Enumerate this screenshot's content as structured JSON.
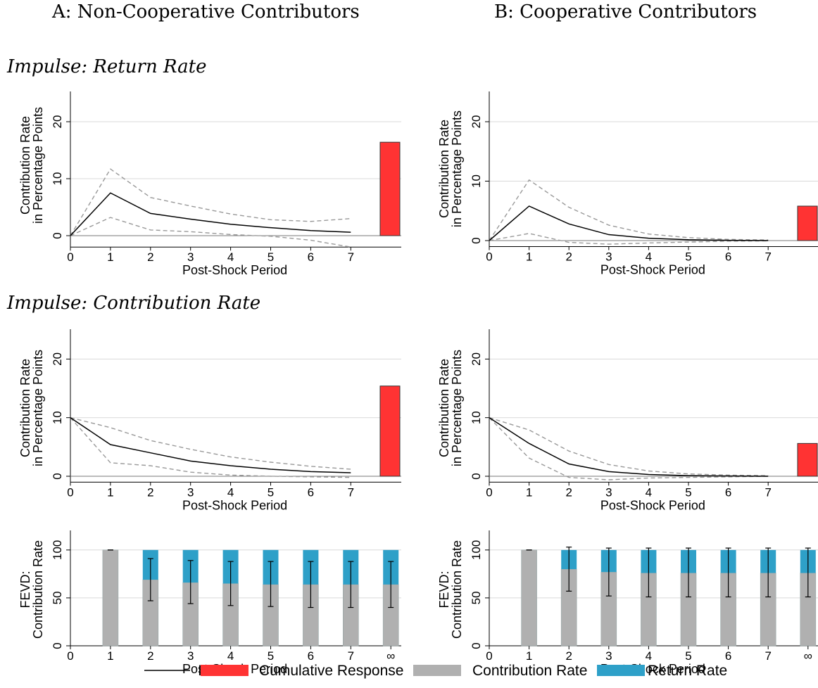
{
  "headings": {
    "panel_a": "A: Non-Cooperative Contributors",
    "panel_b": "B: Cooperative Contributors",
    "impulse_return": "Impulse: Return Rate",
    "impulse_contribution": "Impulse: Contribution Rate"
  },
  "colors": {
    "irf": "#000000",
    "ci": "#999999",
    "cumulative": "#ff3333",
    "contribution": "#b0b0b0",
    "return": "#2ea0c8",
    "grid": "#d9d9d9"
  },
  "legend": {
    "irf": "IRF",
    "cumulative": "Cumulative Response",
    "contribution": "Contribution Rate",
    "return": "Return Rate"
  },
  "chart_data": [
    {
      "id": "a_return",
      "type": "line",
      "xlabel": "Post-Shock Period",
      "ylabel": [
        "Contribution Rate",
        "in Percentage Points"
      ],
      "x": [
        0,
        1,
        2,
        3,
        4,
        5,
        6,
        7
      ],
      "ylim": [
        -2,
        25
      ],
      "yticks": [
        0,
        10,
        20
      ],
      "irf": [
        0,
        7.5,
        3.9,
        2.9,
        2.0,
        1.4,
        0.9,
        0.6
      ],
      "ci_upper": [
        0,
        11.7,
        6.7,
        5.2,
        3.8,
        2.8,
        2.5,
        3.0
      ],
      "ci_lower": [
        0,
        3.2,
        1.0,
        0.7,
        0.2,
        -0.1,
        -0.8,
        -2.0
      ],
      "cumulative": 16.4
    },
    {
      "id": "b_return",
      "type": "line",
      "xlabel": "Post-Shock Period",
      "ylabel": [
        "Contribution Rate",
        "in Percentage Points"
      ],
      "x": [
        0,
        1,
        2,
        3,
        4,
        5,
        6,
        7
      ],
      "ylim": [
        -1,
        25
      ],
      "yticks": [
        0,
        10,
        20
      ],
      "irf": [
        0,
        5.8,
        2.8,
        1.0,
        0.4,
        0.15,
        0.05,
        0.0
      ],
      "ci_upper": [
        0,
        10.2,
        5.6,
        2.6,
        1.1,
        0.5,
        0.2,
        0.1
      ],
      "ci_lower": [
        0,
        1.2,
        -0.3,
        -0.6,
        -0.4,
        -0.25,
        -0.1,
        -0.05
      ],
      "cumulative": 5.8
    },
    {
      "id": "a_contribution",
      "type": "line",
      "xlabel": "Post-Shock Period",
      "ylabel": [
        "Contribution Rate",
        "in Percentage Points"
      ],
      "x": [
        0,
        1,
        2,
        3,
        4,
        5,
        6,
        7
      ],
      "ylim": [
        -1,
        25
      ],
      "yticks": [
        0,
        10,
        20
      ],
      "irf": [
        10.0,
        5.4,
        4.0,
        2.6,
        1.8,
        1.2,
        0.8,
        0.6
      ],
      "ci_upper": [
        10.0,
        8.3,
        6.1,
        4.6,
        3.3,
        2.4,
        1.7,
        1.2
      ],
      "ci_lower": [
        10.0,
        2.3,
        1.8,
        0.7,
        0.2,
        0.0,
        -0.1,
        -0.2
      ],
      "cumulative": 15.4
    },
    {
      "id": "b_contribution",
      "type": "line",
      "xlabel": "Post-Shock Period",
      "ylabel": [
        "Contribution Rate",
        "in Percentage Points"
      ],
      "x": [
        0,
        1,
        2,
        3,
        4,
        5,
        6,
        7
      ],
      "ylim": [
        -1,
        25
      ],
      "yticks": [
        0,
        10,
        20
      ],
      "irf": [
        10.0,
        5.6,
        2.1,
        0.8,
        0.3,
        0.1,
        0.05,
        0.0
      ],
      "ci_upper": [
        10.0,
        7.9,
        4.3,
        2.0,
        0.9,
        0.4,
        0.2,
        0.1
      ],
      "ci_lower": [
        10.0,
        3.1,
        -0.2,
        -0.6,
        -0.3,
        -0.2,
        -0.1,
        0.0
      ],
      "cumulative": 5.6
    },
    {
      "id": "a_fevd",
      "type": "bar",
      "xlabel": "Post-Shock Period",
      "ylabel": [
        "FEVD:",
        "Contribution Rate"
      ],
      "xticks": [
        "0",
        "1",
        "2",
        "3",
        "4",
        "5",
        "6",
        "7",
        "∞"
      ],
      "ylim": [
        0,
        120
      ],
      "yticks": [
        0,
        50,
        100
      ],
      "categories": [
        "1",
        "2",
        "3",
        "4",
        "5",
        "6",
        "7",
        "∞"
      ],
      "contribution": [
        100,
        69,
        66,
        65,
        64,
        64,
        64,
        64
      ],
      "return": [
        0,
        31,
        34,
        35,
        36,
        36,
        36,
        36
      ],
      "err_low": [
        100,
        47,
        44,
        42,
        41,
        40,
        40,
        40
      ],
      "err_high": [
        100,
        91,
        89,
        88,
        88,
        88,
        88,
        88
      ]
    },
    {
      "id": "b_fevd",
      "type": "bar",
      "xlabel": "Post-Shock Period",
      "ylabel": [
        "FEVD:",
        "Contribution Rate"
      ],
      "xticks": [
        "0",
        "1",
        "2",
        "3",
        "4",
        "5",
        "6",
        "7",
        "∞"
      ],
      "ylim": [
        0,
        120
      ],
      "yticks": [
        0,
        50,
        100
      ],
      "categories": [
        "1",
        "2",
        "3",
        "4",
        "5",
        "6",
        "7",
        "∞"
      ],
      "contribution": [
        100,
        80,
        77,
        76,
        76,
        76,
        76,
        76
      ],
      "return": [
        0,
        20,
        23,
        24,
        24,
        24,
        24,
        24
      ],
      "err_low": [
        100,
        57,
        52,
        51,
        51,
        51,
        51,
        51
      ],
      "err_high": [
        100,
        103,
        102,
        102,
        102,
        102,
        102,
        102
      ]
    }
  ]
}
